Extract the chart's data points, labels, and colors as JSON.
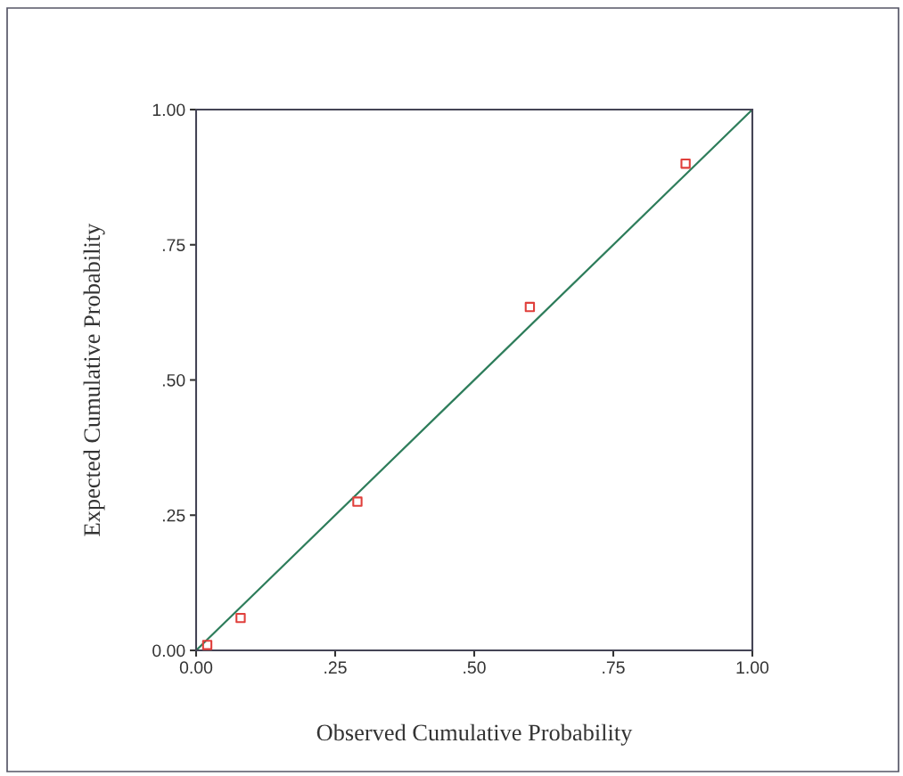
{
  "chart_data": {
    "type": "scatter",
    "xlabel": "Observed Cumulative Probability",
    "ylabel": "Expected Cumulative Probability",
    "series": [
      {
        "color": "#e0403c",
        "marker": "square",
        "x": [
          0.02,
          0.08,
          0.29,
          0.6,
          0.88
        ],
        "values": [
          0.01,
          0.06,
          0.275,
          0.635,
          0.9
        ]
      },
      {
        "type": "line",
        "color": "#2e7d5b",
        "marker": "none",
        "line_style": "solid",
        "x": [
          0,
          1
        ],
        "values": [
          0,
          1
        ]
      }
    ],
    "xlim": [
      0,
      1
    ],
    "ylim": [
      0,
      1
    ],
    "xticks": [
      {
        "value": 0,
        "label": "0.00"
      },
      {
        "value": 0.25,
        "label": ".25"
      },
      {
        "value": 0.5,
        "label": ".50"
      },
      {
        "value": 0.75,
        "label": ".75"
      },
      {
        "value": 1,
        "label": "1.00"
      }
    ],
    "yticks": [
      {
        "value": 0,
        "label": "0.00"
      },
      {
        "value": 0.25,
        "label": ".25"
      },
      {
        "value": 0.5,
        "label": ".50"
      },
      {
        "value": 0.75,
        "label": ".75"
      },
      {
        "value": 1,
        "label": "1.00"
      }
    ],
    "grid": false,
    "legend": false
  }
}
